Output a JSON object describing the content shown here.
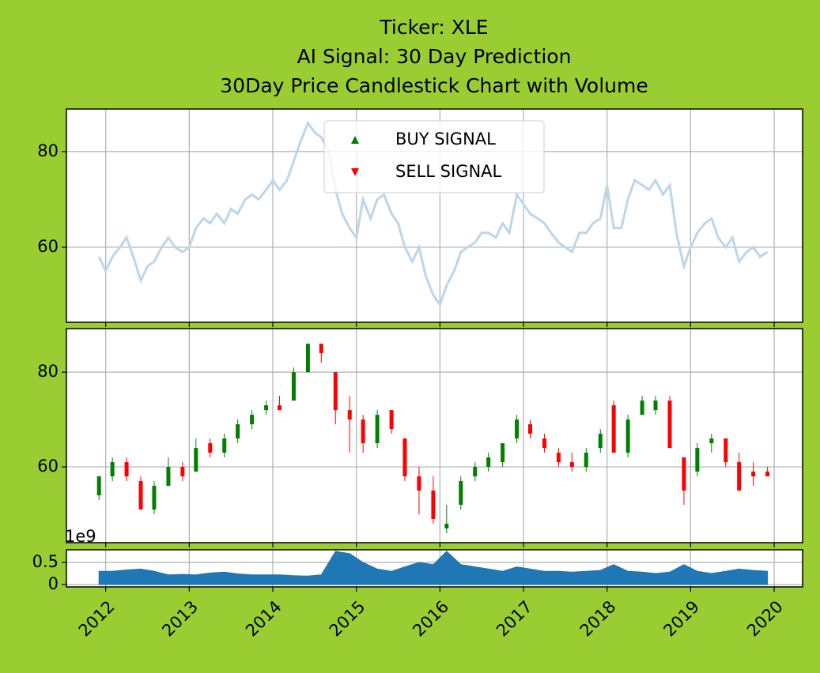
{
  "chart_data": [
    {
      "type": "line",
      "title": [
        "Ticker: XLE",
        "AI Signal: 30 Day Prediction",
        "30Day Price Candlestick Chart with Volume"
      ],
      "xlim": [
        2011.53,
        2020.34
      ],
      "xticks": [
        2012,
        2013,
        2014,
        2015,
        2016,
        2017,
        2018,
        2019,
        2020
      ],
      "ylim": [
        44.3,
        88.9
      ],
      "yticks": [
        60,
        80
      ],
      "grid": true,
      "legend": {
        "loc": "upper center",
        "entries": [
          {
            "name": "BUY SIGNAL",
            "color": "#008000",
            "marker": "^"
          },
          {
            "name": "SELL SIGNAL",
            "color": "#ff0000",
            "marker": "v"
          }
        ]
      },
      "series": [
        {
          "color": "#bcd6ea",
          "x": [
            2011.92,
            2012.0,
            2012.08,
            2012.17,
            2012.25,
            2012.33,
            2012.42,
            2012.5,
            2012.58,
            2012.67,
            2012.75,
            2012.83,
            2012.92,
            2013.0,
            2013.08,
            2013.17,
            2013.25,
            2013.33,
            2013.42,
            2013.5,
            2013.58,
            2013.67,
            2013.75,
            2013.83,
            2013.92,
            2014.0,
            2014.08,
            2014.17,
            2014.25,
            2014.33,
            2014.42,
            2014.5,
            2014.58,
            2014.67,
            2014.75,
            2014.83,
            2014.92,
            2015.0,
            2015.08,
            2015.17,
            2015.25,
            2015.33,
            2015.42,
            2015.5,
            2015.58,
            2015.67,
            2015.75,
            2015.83,
            2015.92,
            2016.0,
            2016.08,
            2016.17,
            2016.25,
            2016.33,
            2016.42,
            2016.5,
            2016.58,
            2016.67,
            2016.75,
            2016.83,
            2016.92,
            2017.0,
            2017.08,
            2017.17,
            2017.25,
            2017.33,
            2017.42,
            2017.5,
            2017.58,
            2017.67,
            2017.75,
            2017.83,
            2017.92,
            2018.0,
            2018.08,
            2018.17,
            2018.25,
            2018.33,
            2018.42,
            2018.5,
            2018.58,
            2018.67,
            2018.75,
            2018.83,
            2018.92,
            2019.0,
            2019.08,
            2019.17,
            2019.25,
            2019.33,
            2019.42,
            2019.5,
            2019.58,
            2019.67,
            2019.75,
            2019.83,
            2019.92
          ],
          "values": [
            58,
            55,
            58,
            60,
            62,
            58,
            53,
            56,
            57,
            60,
            62,
            60,
            59,
            60,
            64,
            66,
            65,
            67,
            65,
            68,
            67,
            70,
            71,
            70,
            72,
            74,
            72,
            74,
            78,
            82,
            86,
            84,
            83,
            80,
            72,
            67,
            64,
            62,
            70,
            66,
            70,
            71,
            67,
            65,
            60,
            57,
            60,
            54,
            50,
            48,
            52,
            55,
            59,
            60,
            61,
            63,
            63,
            62,
            65,
            63,
            71,
            69,
            67,
            66,
            65,
            63,
            61,
            60,
            59,
            63,
            63,
            65,
            66,
            73,
            64,
            64,
            70,
            74,
            73,
            72,
            74,
            71,
            73,
            63,
            56,
            60,
            63,
            65,
            66,
            62,
            60,
            62,
            57,
            59,
            60,
            58,
            59
          ]
        }
      ]
    },
    {
      "type": "candlestick",
      "xlim": [
        2011.53,
        2020.34
      ],
      "xticks": [
        2012,
        2013,
        2014,
        2015,
        2016,
        2017,
        2018,
        2019,
        2020
      ],
      "ylim": [
        44,
        89.2
      ],
      "yticks": [
        60,
        80
      ],
      "grid": true,
      "up_color": "#008000",
      "down_color": "#ff0000",
      "x": [
        2011.92,
        2012.08,
        2012.25,
        2012.42,
        2012.58,
        2012.75,
        2012.92,
        2013.08,
        2013.25,
        2013.42,
        2013.58,
        2013.75,
        2013.92,
        2014.08,
        2014.25,
        2014.42,
        2014.58,
        2014.75,
        2014.92,
        2015.08,
        2015.25,
        2015.42,
        2015.58,
        2015.75,
        2015.92,
        2016.08,
        2016.25,
        2016.42,
        2016.58,
        2016.75,
        2016.92,
        2017.08,
        2017.25,
        2017.42,
        2017.58,
        2017.75,
        2017.92,
        2018.08,
        2018.25,
        2018.42,
        2018.58,
        2018.75,
        2018.92,
        2019.08,
        2019.25,
        2019.42,
        2019.58,
        2019.75,
        2019.92
      ],
      "open": [
        54,
        58,
        61,
        57,
        51,
        56,
        60,
        59,
        65,
        63,
        66,
        69,
        72,
        73,
        74,
        80,
        86,
        80,
        72,
        70,
        65,
        72,
        66,
        58,
        55,
        47,
        52,
        58,
        60,
        61,
        66,
        69,
        66,
        63,
        61,
        60,
        64,
        73,
        63,
        71,
        72,
        74,
        62,
        59,
        65,
        66,
        61,
        59,
        59
      ],
      "high": [
        58,
        62,
        62,
        58,
        57,
        62,
        61,
        66,
        66,
        67,
        70,
        72,
        74,
        75,
        81,
        86,
        86,
        80,
        75,
        71,
        72,
        72,
        66,
        60,
        58,
        52,
        58,
        61,
        63,
        65,
        71,
        70,
        67,
        64,
        63,
        64,
        68,
        74,
        71,
        75,
        75,
        75,
        62,
        65,
        67,
        66,
        63,
        61,
        60
      ],
      "low": [
        53,
        57,
        57,
        51,
        50,
        56,
        57,
        59,
        62,
        62,
        65,
        68,
        71,
        72,
        74,
        80,
        82,
        69,
        63,
        63,
        64,
        67,
        57,
        50,
        48,
        46,
        51,
        57,
        59,
        60,
        65,
        66,
        63,
        60,
        59,
        59,
        63,
        63,
        62,
        71,
        71,
        64,
        52,
        58,
        63,
        60,
        55,
        56,
        58
      ],
      "close": [
        58,
        61,
        58,
        51,
        56,
        60,
        58,
        64,
        63,
        66,
        69,
        71,
        73,
        72,
        80,
        86,
        84,
        72,
        70,
        65,
        71,
        68,
        58,
        55,
        49,
        48,
        57,
        60,
        62,
        65,
        70,
        67,
        64,
        61,
        60,
        63,
        67,
        63,
        70,
        74,
        74,
        64,
        55,
        64,
        66,
        61,
        55,
        58,
        58
      ]
    },
    {
      "type": "area",
      "xlim": [
        2011.53,
        2020.34
      ],
      "xticks": [
        2012,
        2013,
        2014,
        2015,
        2016,
        2017,
        2018,
        2019,
        2020
      ],
      "ylim": [
        -0.054,
        0.786
      ],
      "yticks": [
        0.0,
        0.5
      ],
      "y_offset_label": "1e9",
      "grid": true,
      "color": "#1f77b4",
      "x": [
        2011.92,
        2012.08,
        2012.25,
        2012.42,
        2012.58,
        2012.75,
        2012.92,
        2013.08,
        2013.25,
        2013.42,
        2013.58,
        2013.75,
        2013.92,
        2014.08,
        2014.25,
        2014.42,
        2014.58,
        2014.75,
        2014.92,
        2015.08,
        2015.25,
        2015.42,
        2015.58,
        2015.75,
        2015.92,
        2016.08,
        2016.25,
        2016.42,
        2016.58,
        2016.75,
        2016.92,
        2017.08,
        2017.25,
        2017.42,
        2017.58,
        2017.75,
        2017.92,
        2018.08,
        2018.25,
        2018.42,
        2018.58,
        2018.75,
        2018.92,
        2019.08,
        2019.25,
        2019.42,
        2019.58,
        2019.75,
        2019.92
      ],
      "values": [
        0.3,
        0.3,
        0.33,
        0.35,
        0.3,
        0.22,
        0.23,
        0.22,
        0.26,
        0.28,
        0.24,
        0.22,
        0.22,
        0.22,
        0.2,
        0.19,
        0.22,
        0.75,
        0.7,
        0.5,
        0.35,
        0.3,
        0.4,
        0.5,
        0.45,
        0.75,
        0.45,
        0.4,
        0.35,
        0.3,
        0.4,
        0.35,
        0.3,
        0.3,
        0.28,
        0.3,
        0.32,
        0.45,
        0.3,
        0.28,
        0.25,
        0.28,
        0.45,
        0.3,
        0.25,
        0.3,
        0.35,
        0.32,
        0.3
      ]
    }
  ]
}
